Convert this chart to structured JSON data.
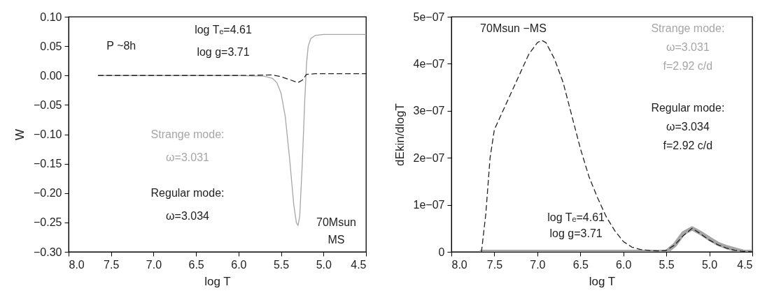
{
  "chart_data": [
    {
      "type": "line",
      "xlabel": "log T",
      "ylabel": "W",
      "xlim": [
        8.0,
        4.5
      ],
      "ylim": [
        -0.3,
        0.1
      ],
      "xticks": [
        {
          "value": 8,
          "label": "8.0"
        },
        {
          "value": 7.5,
          "label": "7.5"
        },
        {
          "value": 7,
          "label": "7.0"
        },
        {
          "value": 6.5,
          "label": "6.5"
        },
        {
          "value": 6,
          "label": "6.0"
        },
        {
          "value": 5.5,
          "label": "5.5"
        },
        {
          "value": 5,
          "label": "5.0"
        },
        {
          "value": 4.5,
          "label": "4.5"
        }
      ],
      "yticks": [
        {
          "value": -0.3,
          "label": "−0.30"
        },
        {
          "value": -0.25,
          "label": "−0.25"
        },
        {
          "value": -0.2,
          "label": "−0.20"
        },
        {
          "value": -0.15,
          "label": "−0.15"
        },
        {
          "value": -0.1,
          "label": "−0.10"
        },
        {
          "value": -0.05,
          "label": "−0.05"
        },
        {
          "value": 0,
          "label": "0.00"
        },
        {
          "value": 0.05,
          "label": "0.05"
        },
        {
          "value": 0.1,
          "label": "0.10"
        }
      ],
      "series": [
        {
          "color": "#a6a6a6",
          "line_style": "solid",
          "x": [
            7.65,
            7.0,
            6.0,
            5.7,
            5.6,
            5.55,
            5.5,
            5.45,
            5.4,
            5.35,
            5.32,
            5.3,
            5.28,
            5.25,
            5.22,
            5.2,
            5.18,
            5.15,
            5.1,
            5.0,
            4.9,
            4.5
          ],
          "values": [
            0,
            0,
            0,
            -0.001,
            -0.005,
            -0.012,
            -0.03,
            -0.07,
            -0.14,
            -0.22,
            -0.25,
            -0.255,
            -0.24,
            -0.15,
            -0.04,
            0.02,
            0.05,
            0.063,
            0.068,
            0.07,
            0.07,
            0.07
          ]
        },
        {
          "color": "#222222",
          "line_style": "dashed",
          "x": [
            7.65,
            6.0,
            5.6,
            5.5,
            5.4,
            5.3,
            5.25,
            5.2,
            5.1,
            4.5
          ],
          "values": [
            0,
            0,
            0.001,
            -0.002,
            -0.007,
            -0.012,
            -0.008,
            0.002,
            0.003,
            0.003
          ]
        }
      ],
      "annotations": [
        "P ~8h",
        "log Tₑ=4.61",
        "log g=3.71",
        "Strange mode:",
        "ω=3.031",
        "Regular mode:",
        "ω=3.034",
        "70Msun",
        "MS"
      ]
    },
    {
      "type": "line",
      "xlabel": "log T",
      "ylabel": "dEkin/dlogT",
      "xlim": [
        8.0,
        4.5
      ],
      "ylim": [
        0,
        5e-07
      ],
      "xticks": [
        {
          "value": 8,
          "label": "8.0"
        },
        {
          "value": 7.5,
          "label": "7.5"
        },
        {
          "value": 7,
          "label": "7.0"
        },
        {
          "value": 6.5,
          "label": "6.5"
        },
        {
          "value": 6,
          "label": "6.0"
        },
        {
          "value": 5.5,
          "label": "5.5"
        },
        {
          "value": 5,
          "label": "5.0"
        },
        {
          "value": 4.5,
          "label": "4.5"
        }
      ],
      "yticks": [
        0,
        {
          "value": 1e-07,
          "label": "1e−07"
        },
        {
          "value": 2e-07,
          "label": "2e−07"
        },
        {
          "value": 3e-07,
          "label": "3e−07"
        },
        {
          "value": 4e-07,
          "label": "4e−07"
        },
        {
          "value": 5e-07,
          "label": "5e−07"
        }
      ],
      "series": [
        {
          "color": "#a6a6a6",
          "line_style": "solid",
          "x": [
            7.65,
            5.5,
            5.4,
            5.3,
            5.2,
            5.1,
            5.0,
            4.9,
            4.8,
            4.7,
            4.6,
            4.5
          ],
          "values": [
            0,
            0,
            1.5e-08,
            4e-08,
            5e-08,
            4e-08,
            2.8e-08,
            1.7e-08,
            1e-08,
            5e-09,
            0,
            0
          ]
        },
        {
          "color": "#222222",
          "line_style": "dashed",
          "x": [
            7.65,
            7.6,
            7.55,
            7.5,
            7.45,
            7.3,
            7.2,
            7.1,
            7.0,
            6.95,
            6.9,
            6.8,
            6.7,
            6.6,
            6.5,
            6.4,
            6.3,
            6.2,
            6.1,
            6.0,
            5.9,
            5.8,
            5.7,
            5.6,
            5.5,
            5.4,
            5.3,
            5.2,
            5.1,
            5.0,
            4.9,
            4.8,
            4.7,
            4.6,
            4.5
          ],
          "values": [
            0,
            8e-08,
            2e-07,
            2.6e-07,
            2.8e-07,
            3.4e-07,
            3.8e-07,
            4.2e-07,
            4.45e-07,
            4.5e-07,
            4.45e-07,
            4.1e-07,
            3.6e-07,
            2.9e-07,
            2.2e-07,
            1.6e-07,
            1.15e-07,
            7.5e-08,
            4.5e-08,
            2.2e-08,
            1e-08,
            5e-09,
            3e-09,
            2e-09,
            3e-09,
            1.5e-08,
            3.5e-08,
            5e-08,
            3.8e-08,
            2.5e-08,
            1.5e-08,
            8e-09,
            3e-09,
            1e-09,
            0
          ]
        }
      ],
      "annotations": [
        "70Msun −MS",
        "Strange mode:",
        "ω=3.031",
        "f=2.92 c/d",
        "Regular mode:",
        "ω=3.034",
        "f=2.92 c/d",
        "log Tₑ=4.61",
        "log g=3.71"
      ]
    }
  ]
}
